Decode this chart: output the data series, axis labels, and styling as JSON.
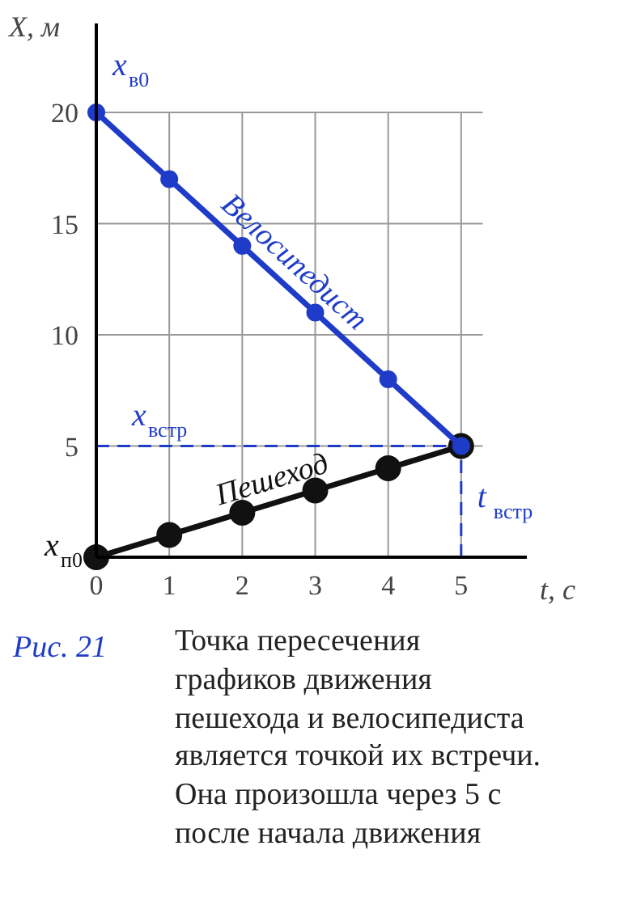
{
  "chart_data": {
    "type": "line",
    "x": [
      0,
      1,
      2,
      3,
      4,
      5
    ],
    "series": [
      {
        "name": "Велосипедист",
        "color": "#1f3cc8",
        "values": [
          20,
          17,
          14,
          11,
          8,
          5
        ]
      },
      {
        "name": "Пешеход",
        "color": "#111111",
        "values": [
          0,
          1,
          2,
          3,
          4,
          5
        ]
      }
    ],
    "xlabel": "t, с",
    "ylabel": "X, м",
    "xlim": [
      0,
      5.9
    ],
    "ylim": [
      0,
      24
    ],
    "xticks": [
      0,
      1,
      2,
      3,
      4,
      5
    ],
    "yticks": [
      5,
      10,
      15,
      20
    ],
    "grid": true,
    "marker": "circle",
    "line_style": "solid",
    "legend": false,
    "ref_lines": [
      {
        "axis": "y",
        "value": 5,
        "label": "x$_{встр}$",
        "color": "#1f3cc8",
        "line_style": "dashed"
      },
      {
        "axis": "x",
        "value": 5,
        "label": "t$_{встр}$",
        "color": "#1f3cc8",
        "line_style": "dashed"
      }
    ],
    "annotations": [
      {
        "text": "x$_{в0}$",
        "x": 0,
        "y": 20
      },
      {
        "text": "x$_{п0}$",
        "x": 0,
        "y": 0
      },
      "Рис. 21",
      "Точка пересечения\nграфиков движения\nпешехода и велосипедиста\nявляется точкой их встречи.\nОна произошла через 5 с\nпосле начала движения"
    ]
  }
}
